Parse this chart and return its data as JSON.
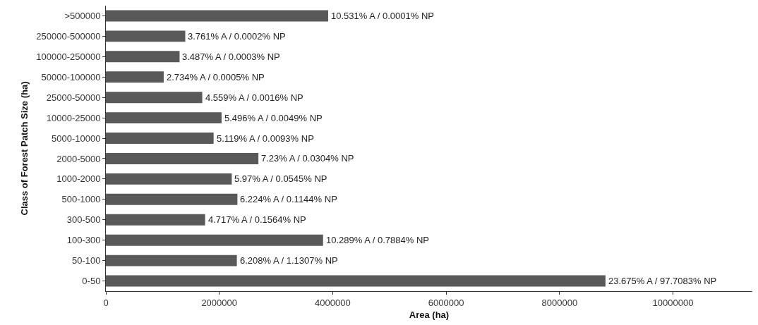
{
  "chart_data": {
    "type": "bar",
    "orientation": "horizontal",
    "xlabel": "Area (ha)",
    "ylabel": "Class of Forest Patch Size (ha)",
    "categories": [
      ">500000",
      "250000-500000",
      "100000-250000",
      "50000-100000",
      "25000-50000",
      "10000-25000",
      "5000-10000",
      "2000-5000",
      "1000-2000",
      "500-1000",
      "300-500",
      "100-300",
      "50-100",
      "0-50"
    ],
    "values": [
      3920000,
      1400000,
      1300000,
      1020000,
      1700000,
      2040000,
      1900000,
      2690000,
      2220000,
      2320000,
      1750000,
      3830000,
      2310000,
      8810000
    ],
    "annotations": [
      {
        "text": "10.531% A / 0.0001% NP",
        "x": 3920000,
        "y": ">500000"
      },
      {
        "text": "3.761% A / 0.0002% NP",
        "x": 1400000,
        "y": "250000-500000"
      },
      {
        "text": "3.487% A / 0.0003% NP",
        "x": 1300000,
        "y": "100000-250000"
      },
      {
        "text": "2.734% A / 0.0005% NP",
        "x": 1020000,
        "y": "50000-100000"
      },
      {
        "text": "4.559% A / 0.0016% NP",
        "x": 1700000,
        "y": "25000-50000"
      },
      {
        "text": "5.496% A / 0.0049% NP",
        "x": 2040000,
        "y": "10000-25000"
      },
      {
        "text": "5.119% A / 0.0093% NP",
        "x": 1900000,
        "y": "5000-10000"
      },
      {
        "text": "7.23% A / 0.0304% NP",
        "x": 2690000,
        "y": "2000-5000"
      },
      {
        "text": "5.97% A / 0.0545% NP",
        "x": 2220000,
        "y": "1000-2000"
      },
      {
        "text": "6.224% A / 0.1144% NP",
        "x": 2320000,
        "y": "500-1000"
      },
      {
        "text": "4.717% A / 0.1564% NP",
        "x": 1750000,
        "y": "300-500"
      },
      {
        "text": "10.289% A / 0.7884% NP",
        "x": 3830000,
        "y": "100-300"
      },
      {
        "text": "6.208% A / 1.1307% NP",
        "x": 2310000,
        "y": "50-100"
      },
      {
        "text": "23.675% A / 97.7083% NP",
        "x": 8810000,
        "y": "0-50"
      }
    ],
    "color": "#595959",
    "xlim": [
      0,
      11400000
    ],
    "xticks": [
      0,
      2000000,
      4000000,
      6000000,
      8000000,
      10000000
    ],
    "grid": false
  }
}
